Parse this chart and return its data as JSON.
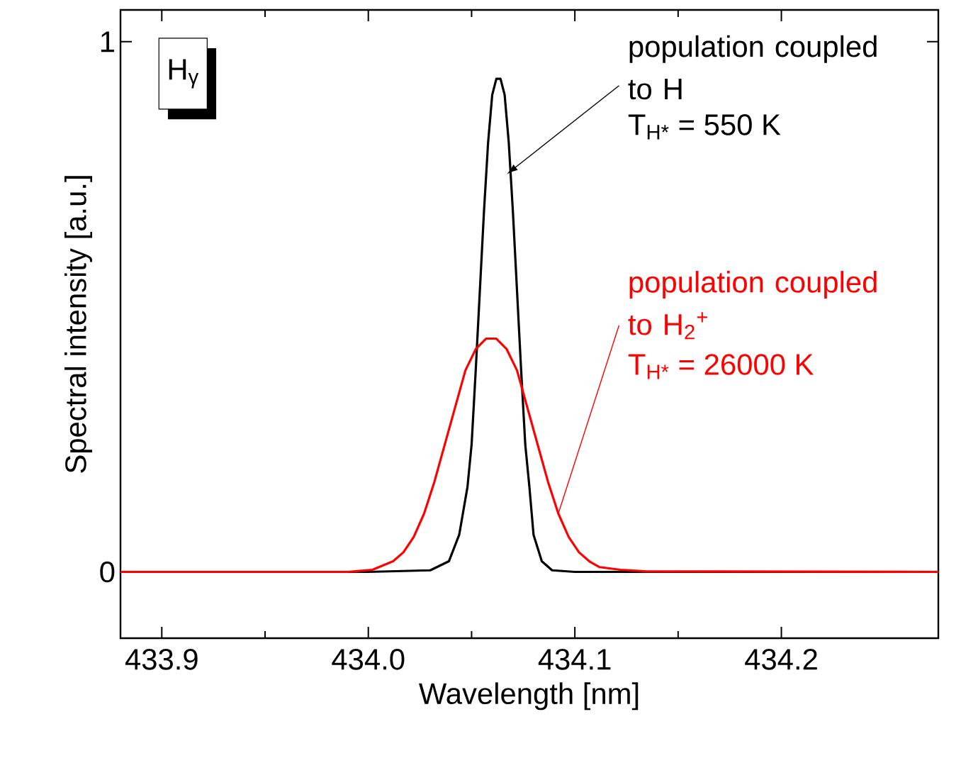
{
  "chart_data": {
    "type": "line",
    "xlabel": "Wavelength [nm]",
    "ylabel": "Spectral intensity [a.u.]",
    "xlim": [
      433.88,
      434.276
    ],
    "ylim": [
      -0.125,
      1.06
    ],
    "xticks": [
      433.9,
      {
        "value": 434.0,
        "label": "434.0"
      },
      434.1,
      434.2
    ],
    "yticks": [
      0,
      1
    ],
    "marker": "none",
    "line_style": "solid",
    "series": [
      {
        "color": "#000000",
        "x": [
          433.88,
          434.0,
          434.03,
          434.039,
          434.044,
          434.048,
          434.05,
          434.052,
          434.054,
          434.056,
          434.058,
          434.06,
          434.062,
          434.064,
          434.066,
          434.068,
          434.07,
          434.072,
          434.074,
          434.076,
          434.078,
          434.08,
          434.084,
          434.089,
          434.1,
          434.276
        ],
        "values": [
          0,
          0,
          0.003,
          0.02,
          0.07,
          0.16,
          0.24,
          0.38,
          0.53,
          0.68,
          0.81,
          0.9,
          0.93,
          0.93,
          0.9,
          0.81,
          0.68,
          0.53,
          0.38,
          0.24,
          0.16,
          0.07,
          0.02,
          0.003,
          0,
          0
        ]
      },
      {
        "color": "#ff0000",
        "x": [
          433.88,
          433.99,
          434.002,
          434.012,
          434.017,
          434.022,
          434.027,
          434.032,
          434.037,
          434.042,
          434.047,
          434.052,
          434.057,
          434.062,
          434.067,
          434.072,
          434.077,
          434.082,
          434.087,
          434.092,
          434.097,
          434.102,
          434.107,
          434.112,
          434.122,
          434.135,
          434.276
        ],
        "values": [
          0,
          0,
          0.004,
          0.02,
          0.037,
          0.066,
          0.11,
          0.17,
          0.24,
          0.31,
          0.38,
          0.42,
          0.44,
          0.44,
          0.42,
          0.38,
          0.31,
          0.24,
          0.17,
          0.11,
          0.066,
          0.037,
          0.02,
          0.009,
          0.004,
          0.001,
          0
        ]
      }
    ],
    "annotations": [
      "H$_{γ}$",
      {
        "text": "population coupled to H",
        "x": 434.067,
        "y": 0.75
      },
      "T$_{H*}$ = 550 K",
      {
        "text": "population coupled to H$_{2}$$^{+}$",
        "x": 434.092,
        "y": 0.11
      },
      "T$_{H*}$ =  26000 K"
    ]
  }
}
